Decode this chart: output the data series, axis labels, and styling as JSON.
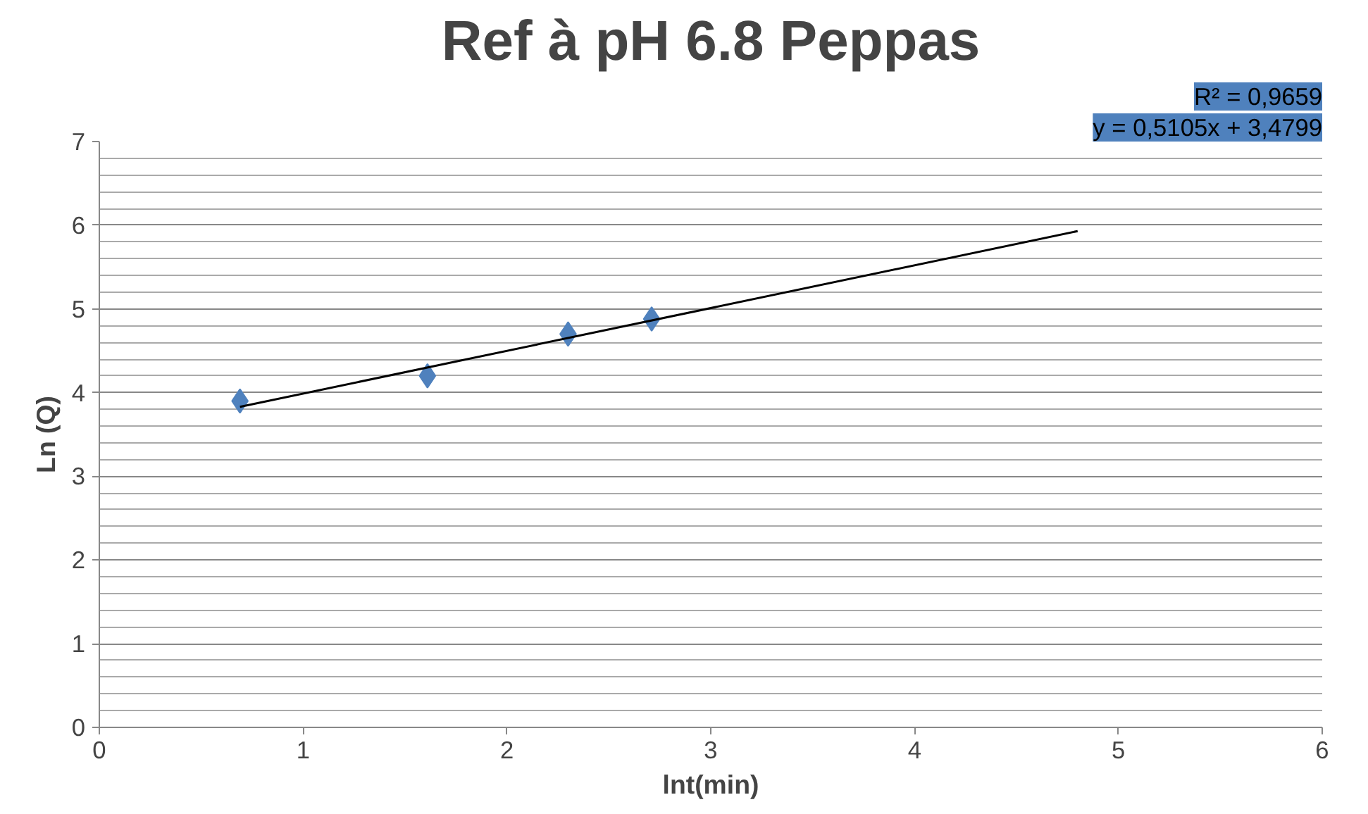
{
  "chart_data": {
    "type": "scatter",
    "title": "Ref à pH 6.8 Peppas",
    "xlabel": "lnt(min)",
    "ylabel": "Ln (Q)",
    "x": [
      0.69,
      1.61,
      2.3,
      2.71
    ],
    "series": [
      {
        "color": "#4f81bd",
        "marker": "diamond",
        "values": [
          3.9,
          4.2,
          4.7,
          4.88
        ]
      },
      {
        "type": "line",
        "color": "#000000",
        "x": [
          0.69,
          4.8
        ],
        "values": [
          3.83,
          5.93
        ]
      }
    ],
    "annotations": [
      "y = 0,5105x + 3,4799",
      "R² = 0,9659"
    ],
    "xlim": [
      0,
      6
    ],
    "xticks": [
      0,
      1,
      2,
      3,
      4,
      5,
      6
    ],
    "ylim": [
      0,
      7
    ],
    "yticks": [
      0,
      1,
      2,
      3,
      4,
      5,
      6,
      7
    ],
    "grid": "y"
  }
}
